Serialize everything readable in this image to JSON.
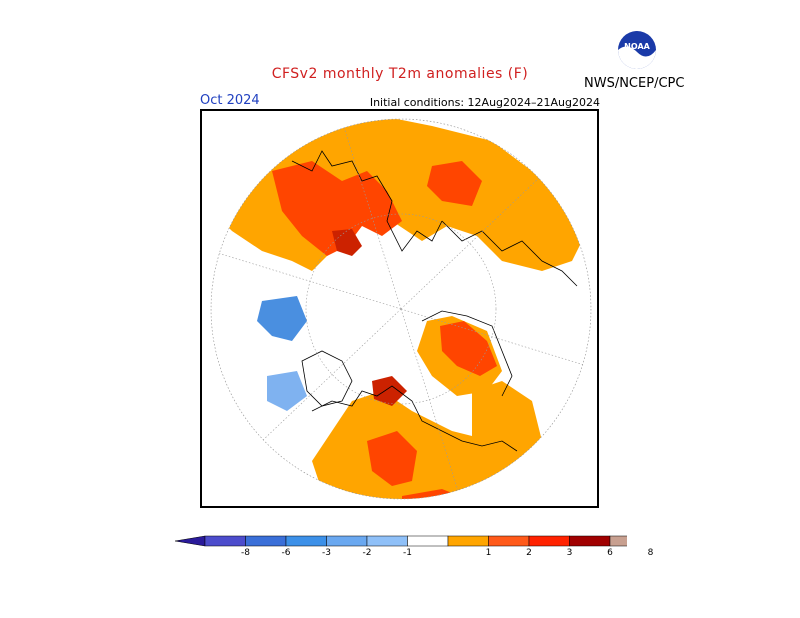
{
  "header": {
    "title": "CFSv2 monthly T2m anomalies (F)",
    "valid_month": "Oct 2024",
    "initial_conditions": "Initial conditions: 12Aug2024–21Aug2024",
    "agency": "NWS/NCEP/CPC",
    "logo_text": "NOAA"
  },
  "colors": {
    "land_outline": "#000000",
    "gridline": "#9a9a9a",
    "anom_1_2": "#ffa500",
    "anom_2_3": "#ff4500",
    "anom_3_6": "#cc2200",
    "anom_6_8": "#8b0000",
    "anom_neg_1_2": "#7fb2f0",
    "anom_neg_2_3": "#4a8fe0"
  },
  "colorbar": {
    "colors": [
      "#2a1a9a",
      "#4c4ccc",
      "#3a6fd8",
      "#3c90e8",
      "#6aa8f0",
      "#8fc0f8",
      "#ffffff",
      "#ffa500",
      "#ff5a1a",
      "#ff2200",
      "#a00000",
      "#c8a090",
      "#7a4a3a"
    ],
    "ticks": [
      "-8",
      "-6",
      "-3",
      "-2",
      "-1",
      "1",
      "2",
      "3",
      "6",
      "8"
    ]
  }
}
